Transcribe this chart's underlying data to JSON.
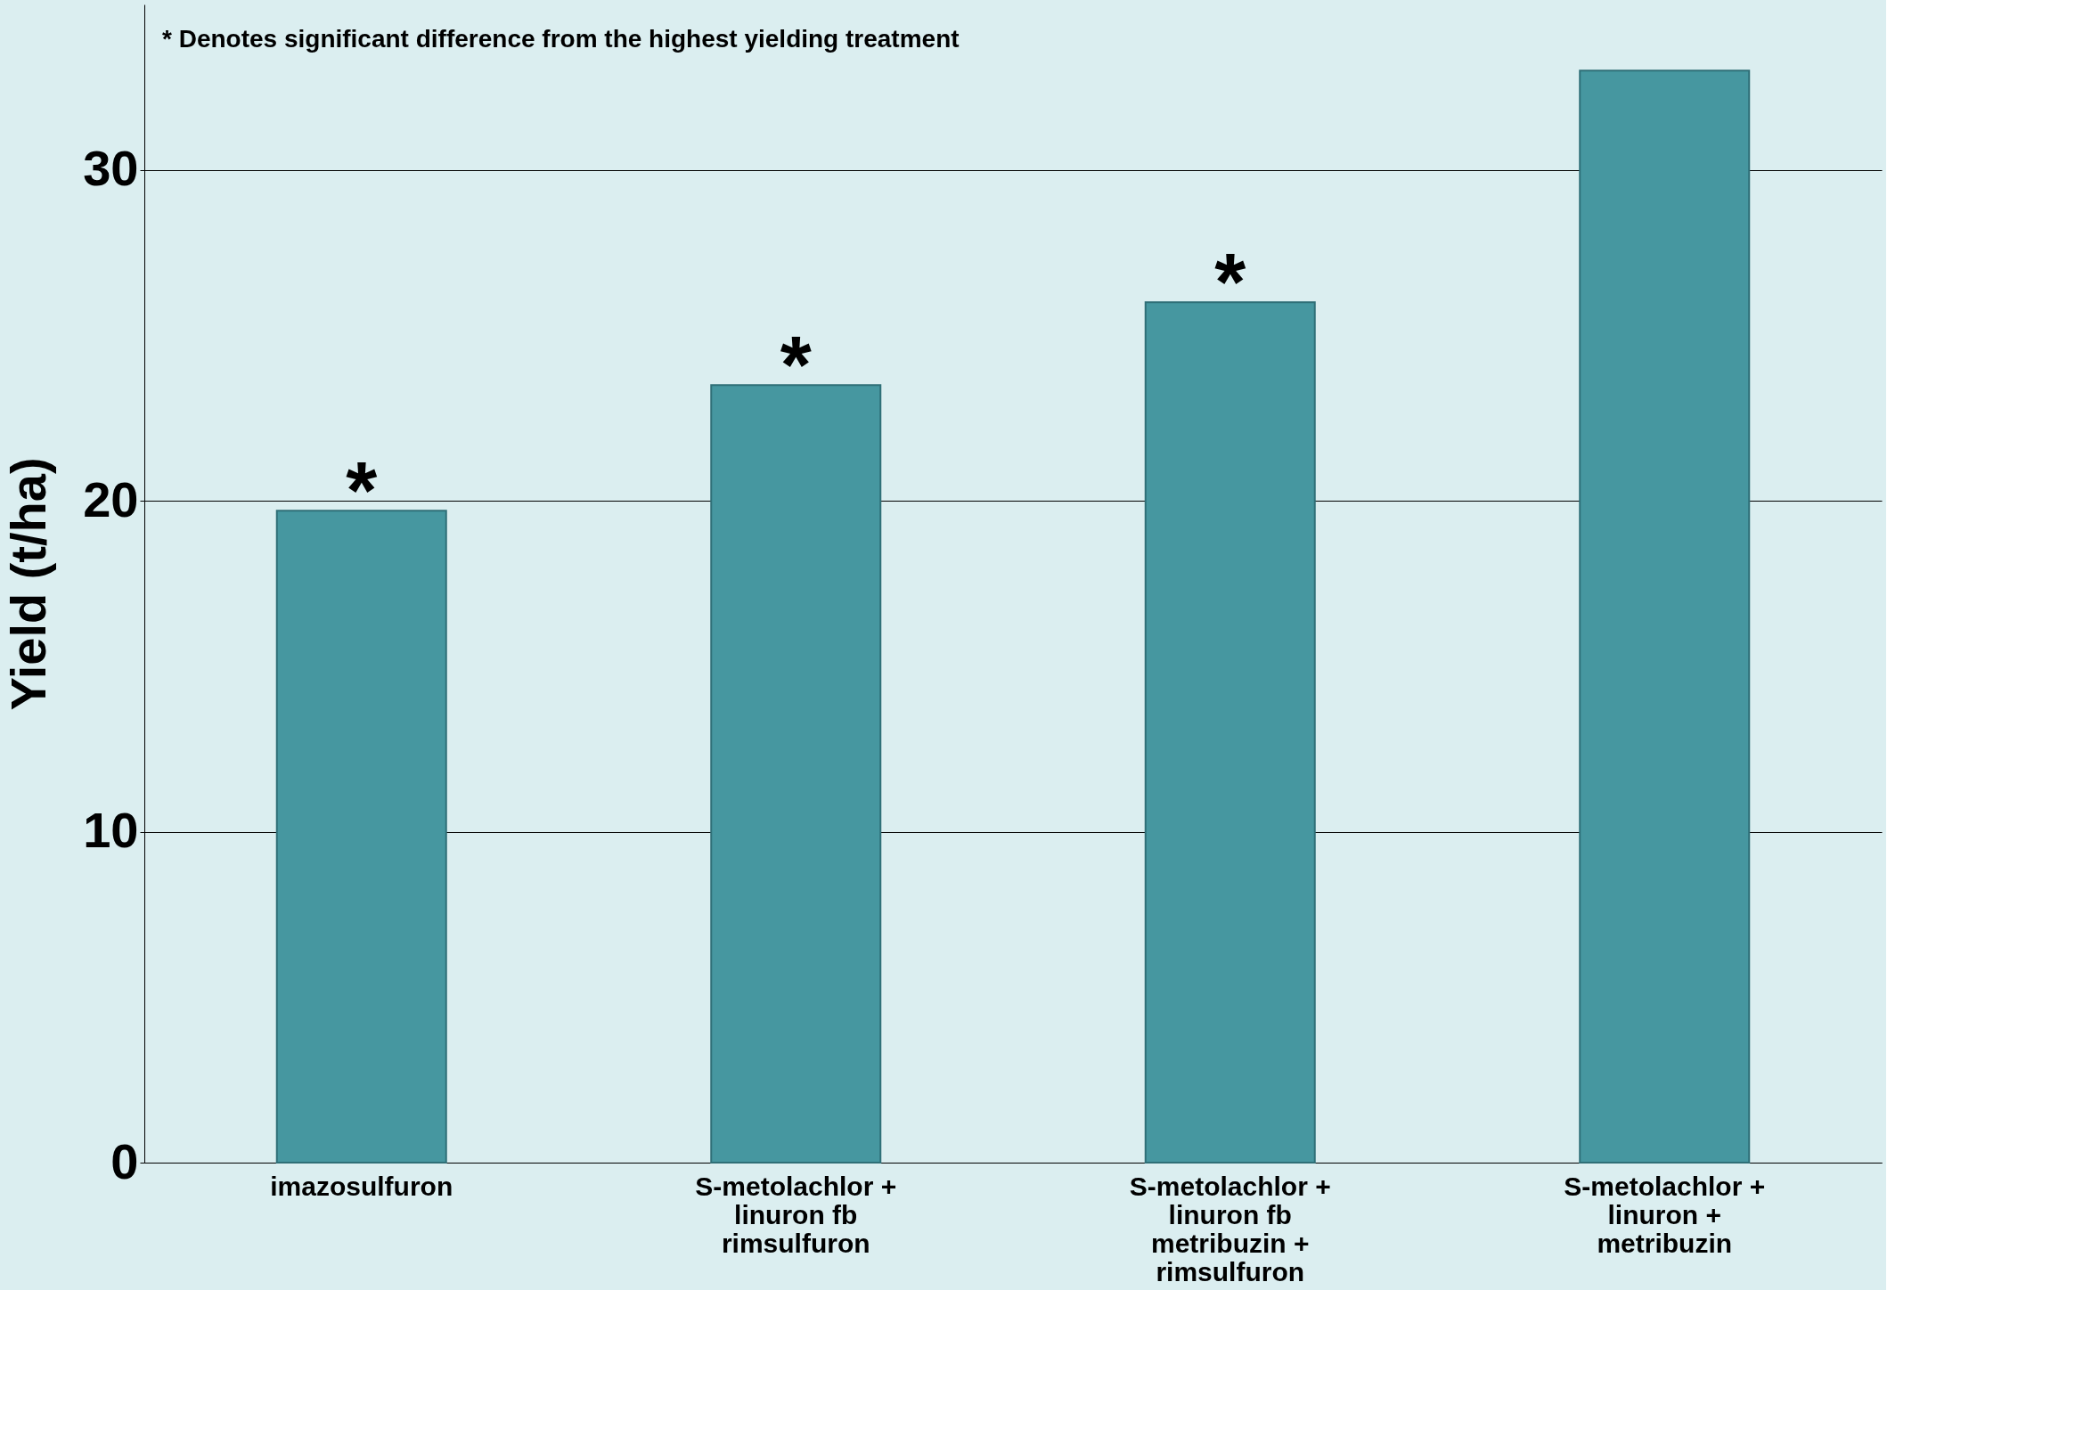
{
  "chart_data": {
    "type": "bar",
    "ylabel": "Yield (t/ha)",
    "categories": [
      "imazosulfuron",
      "S-metolachlor + linuron fb rimsulfuron",
      "S-metolachlor + linuron fb metribuzin + rimsulfuron",
      "S-metolachlor + linuron + metribuzin"
    ],
    "values": [
      19.7,
      23.5,
      26.0,
      33.0
    ],
    "color": "#4697a0",
    "ylim": [
      0,
      35
    ],
    "yticks": [
      0,
      10,
      20,
      30
    ],
    "grid": "y",
    "annotations": [
      "* Denotes significant difference from the highest yielding treatment",
      {
        "text": "*",
        "x": "imazosulfuron",
        "y": 19.7
      },
      {
        "text": "*",
        "x": "S-metolachlor + linuron fb rimsulfuron",
        "y": 23.5
      },
      {
        "text": "*",
        "x": "S-metolachlor + linuron fb metribuzin + rimsulfuron",
        "y": 26.0
      }
    ]
  }
}
